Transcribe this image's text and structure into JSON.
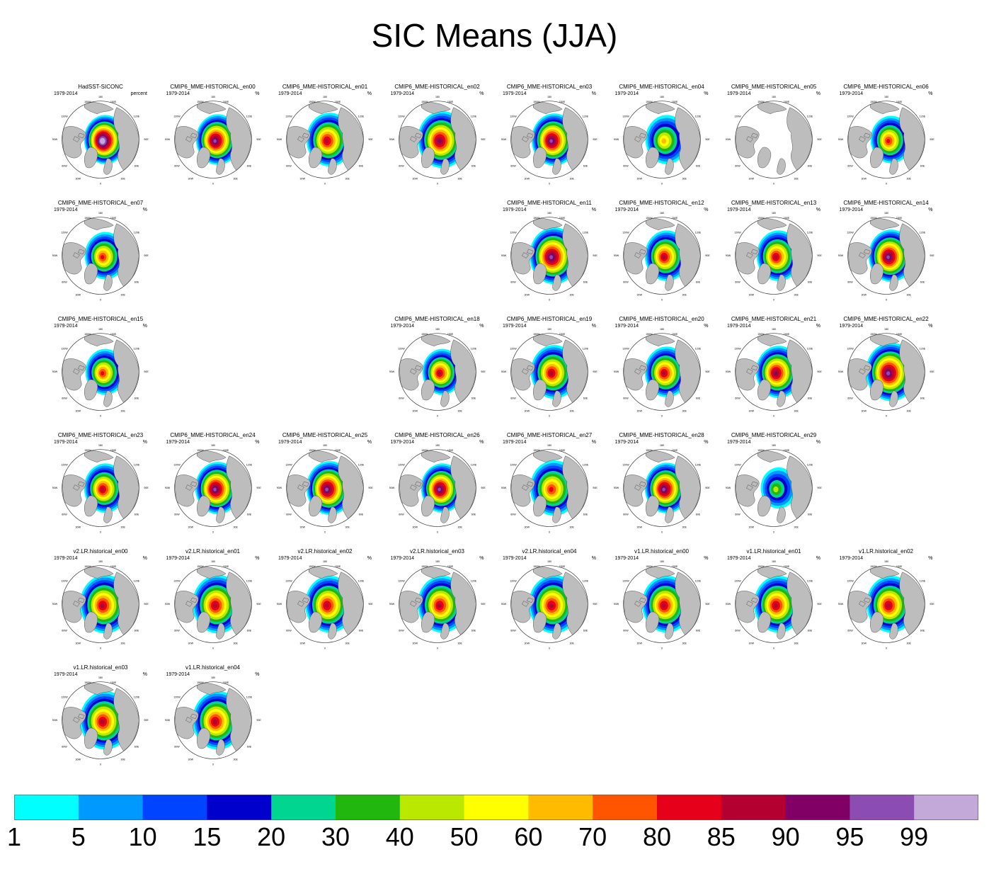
{
  "chart_data": {
    "type": "heatmap",
    "title": "SIC Means (JJA)",
    "description_units": "%",
    "period": "1979-2014",
    "map_labels": {
      "top": "180",
      "bottom": "0",
      "left": "90W",
      "right": "90E",
      "ul": "150W",
      "ur": "150E",
      "ul2": "120W",
      "ur2": "120E",
      "ll": "60W",
      "lr": "60E",
      "ll2": "30W",
      "lr2": "30E"
    },
    "panels": [
      {
        "name": "HadSST-SICONC",
        "units": "percent",
        "row": 0,
        "col": 0,
        "center_level": 15,
        "extent": 0.62
      },
      {
        "name": "CMIP6_MME-HISTORICAL_en00",
        "units": "%",
        "row": 0,
        "col": 1,
        "center_level": 13,
        "extent": 0.64
      },
      {
        "name": "CMIP6_MME-HISTORICAL_en01",
        "units": "%",
        "row": 0,
        "col": 2,
        "center_level": 11,
        "extent": 0.68
      },
      {
        "name": "CMIP6_MME-HISTORICAL_en02",
        "units": "%",
        "row": 0,
        "col": 3,
        "center_level": 12,
        "extent": 0.72
      },
      {
        "name": "CMIP6_MME-HISTORICAL_en03",
        "units": "%",
        "row": 0,
        "col": 4,
        "center_level": 13,
        "extent": 0.66
      },
      {
        "name": "CMIP6_MME-HISTORICAL_en04",
        "units": "%",
        "row": 0,
        "col": 5,
        "center_level": 8,
        "extent": 0.62
      },
      {
        "name": "CMIP6_MME-HISTORICAL_en05",
        "units": "%",
        "row": 0,
        "col": 6,
        "center_level": -1,
        "extent": 0.0
      },
      {
        "name": "CMIP6_MME-HISTORICAL_en06",
        "units": "%",
        "row": 0,
        "col": 7,
        "center_level": 10,
        "extent": 0.6
      },
      {
        "name": "CMIP6_MME-HISTORICAL_en07",
        "units": "%",
        "row": 1,
        "col": 0,
        "center_level": 10,
        "extent": 0.6
      },
      {
        "name": "CMIP6_MME-HISTORICAL_en11",
        "units": "%",
        "row": 1,
        "col": 4,
        "center_level": 13,
        "extent": 0.72
      },
      {
        "name": "CMIP6_MME-HISTORICAL_en12",
        "units": "%",
        "row": 1,
        "col": 5,
        "center_level": 11,
        "extent": 0.64
      },
      {
        "name": "CMIP6_MME-HISTORICAL_en13",
        "units": "%",
        "row": 1,
        "col": 6,
        "center_level": 11,
        "extent": 0.64
      },
      {
        "name": "CMIP6_MME-HISTORICAL_en14",
        "units": "%",
        "row": 1,
        "col": 7,
        "center_level": 13,
        "extent": 0.66
      },
      {
        "name": "CMIP6_MME-HISTORICAL_en15",
        "units": "%",
        "row": 2,
        "col": 0,
        "center_level": 10,
        "extent": 0.58
      },
      {
        "name": "CMIP6_MME-HISTORICAL_en18",
        "units": "%",
        "row": 2,
        "col": 3,
        "center_level": 11,
        "extent": 0.58
      },
      {
        "name": "CMIP6_MME-HISTORICAL_en19",
        "units": "%",
        "row": 2,
        "col": 4,
        "center_level": 11,
        "extent": 0.68
      },
      {
        "name": "CMIP6_MME-HISTORICAL_en20",
        "units": "%",
        "row": 2,
        "col": 5,
        "center_level": 11,
        "extent": 0.64
      },
      {
        "name": "CMIP6_MME-HISTORICAL_en21",
        "units": "%",
        "row": 2,
        "col": 6,
        "center_level": 12,
        "extent": 0.66
      },
      {
        "name": "CMIP6_MME-HISTORICAL_en22",
        "units": "%",
        "row": 2,
        "col": 7,
        "center_level": 13,
        "extent": 0.74
      },
      {
        "name": "CMIP6_MME-HISTORICAL_en23",
        "units": "%",
        "row": 3,
        "col": 0,
        "center_level": 11,
        "extent": 0.62
      },
      {
        "name": "CMIP6_MME-HISTORICAL_en24",
        "units": "%",
        "row": 3,
        "col": 1,
        "center_level": 13,
        "extent": 0.66
      },
      {
        "name": "CMIP6_MME-HISTORICAL_en25",
        "units": "%",
        "row": 3,
        "col": 2,
        "center_level": 13,
        "extent": 0.68
      },
      {
        "name": "CMIP6_MME-HISTORICAL_en26",
        "units": "%",
        "row": 3,
        "col": 3,
        "center_level": 13,
        "extent": 0.62
      },
      {
        "name": "CMIP6_MME-HISTORICAL_en27",
        "units": "%",
        "row": 3,
        "col": 4,
        "center_level": 10,
        "extent": 0.7
      },
      {
        "name": "CMIP6_MME-HISTORICAL_en28",
        "units": "%",
        "row": 3,
        "col": 5,
        "center_level": 13,
        "extent": 0.64
      },
      {
        "name": "CMIP6_MME-HISTORICAL_en29",
        "units": "%",
        "row": 3,
        "col": 6,
        "center_level": 6,
        "extent": 0.52
      },
      {
        "name": "v2.LR.historical_en00",
        "units": "%",
        "row": 4,
        "col": 0,
        "center_level": 11,
        "extent": 0.74
      },
      {
        "name": "v2.LR.historical_en01",
        "units": "%",
        "row": 4,
        "col": 1,
        "center_level": 11,
        "extent": 0.74
      },
      {
        "name": "v2.LR.historical_en02",
        "units": "%",
        "row": 4,
        "col": 2,
        "center_level": 11,
        "extent": 0.72
      },
      {
        "name": "v2.LR.historical_en03",
        "units": "%",
        "row": 4,
        "col": 3,
        "center_level": 11,
        "extent": 0.72
      },
      {
        "name": "v2.LR.historical_en04",
        "units": "%",
        "row": 4,
        "col": 4,
        "center_level": 11,
        "extent": 0.74
      },
      {
        "name": "v1.LR.historical_en00",
        "units": "%",
        "row": 4,
        "col": 5,
        "center_level": 11,
        "extent": 0.72
      },
      {
        "name": "v1.LR.historical_en01",
        "units": "%",
        "row": 4,
        "col": 6,
        "center_level": 11,
        "extent": 0.72
      },
      {
        "name": "v1.LR.historical_en02",
        "units": "%",
        "row": 4,
        "col": 7,
        "center_level": 11,
        "extent": 0.72
      },
      {
        "name": "v1.LR.historical_en03",
        "units": "%",
        "row": 5,
        "col": 0,
        "center_level": 11,
        "extent": 0.74
      },
      {
        "name": "v1.LR.historical_en04",
        "units": "%",
        "row": 5,
        "col": 1,
        "center_level": 11,
        "extent": 0.74
      }
    ],
    "colorbar": {
      "levels": [
        "1",
        "5",
        "10",
        "15",
        "20",
        "30",
        "40",
        "50",
        "60",
        "70",
        "80",
        "85",
        "90",
        "95",
        "99"
      ],
      "colors": [
        "#00ffff",
        "#0099ff",
        "#0044ff",
        "#0000cc",
        "#00d68f",
        "#22b70f",
        "#bbe800",
        "#ffff00",
        "#ffbb00",
        "#ff5500",
        "#e6001a",
        "#b30030",
        "#800066",
        "#8c4db3",
        "#c3a9d9"
      ]
    },
    "land_color": "#bdbdbd",
    "ocean_color": "#ffffff"
  }
}
